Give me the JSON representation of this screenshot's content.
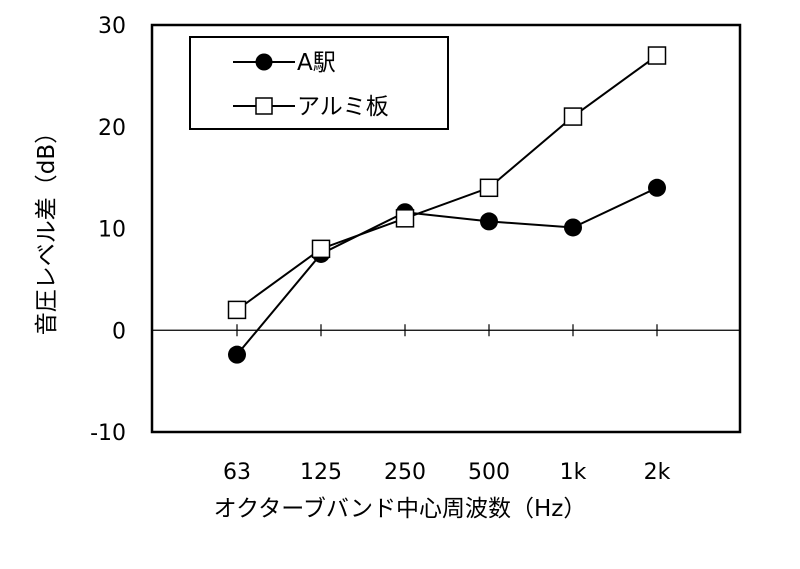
{
  "chart_data": {
    "type": "line",
    "categories": [
      "63",
      "125",
      "250",
      "500",
      "1k",
      "2k"
    ],
    "series": [
      {
        "name": "A駅",
        "marker": "filled-circle",
        "color": "#000000",
        "values": [
          -2.4,
          7.5,
          11.6,
          10.7,
          10.1,
          14.0
        ]
      },
      {
        "name": "アルミ板",
        "marker": "open-square",
        "color": "#000000",
        "values": [
          2.0,
          8.0,
          11.0,
          14.0,
          21.0,
          27.0
        ]
      }
    ],
    "xlabel": "オクターブバンド中心周波数（Hz）",
    "ylabel": "音圧レベル差（dB）",
    "ylim": [
      -10,
      30
    ],
    "yticks": [
      -10,
      0,
      10,
      20,
      30
    ],
    "grid": false,
    "legend_position": "top-left"
  }
}
